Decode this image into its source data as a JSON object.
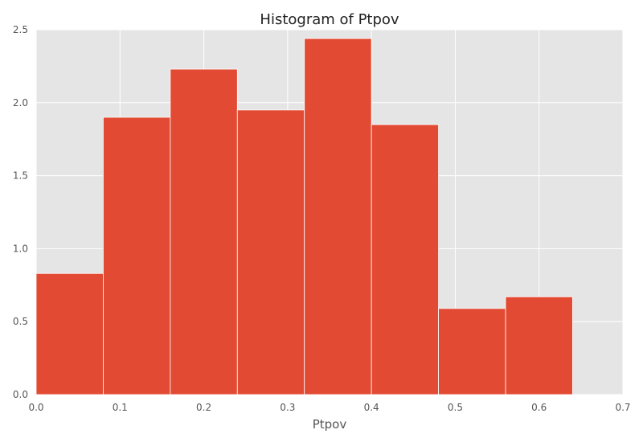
{
  "chart_data": {
    "type": "bar",
    "title": "Histogram of Ptpov",
    "xlabel": "Ptpov",
    "ylabel": "",
    "xlim": [
      0.0,
      0.7
    ],
    "ylim": [
      0.0,
      2.5
    ],
    "bin_edges": [
      0.0,
      0.08,
      0.16,
      0.24,
      0.32,
      0.4,
      0.48,
      0.56,
      0.64
    ],
    "values": [
      0.83,
      1.9,
      2.23,
      1.95,
      2.44,
      1.85,
      0.59,
      0.67
    ],
    "x_ticks": [
      "0.0",
      "0.1",
      "0.2",
      "0.3",
      "0.4",
      "0.5",
      "0.6",
      "0.7"
    ],
    "y_ticks": [
      "0.0",
      "0.5",
      "1.0",
      "1.5",
      "2.0",
      "2.5"
    ],
    "grid": true,
    "colors": {
      "bar": "#e24a33",
      "plot_background": "#e5e5e5",
      "grid": "#ffffff"
    }
  }
}
